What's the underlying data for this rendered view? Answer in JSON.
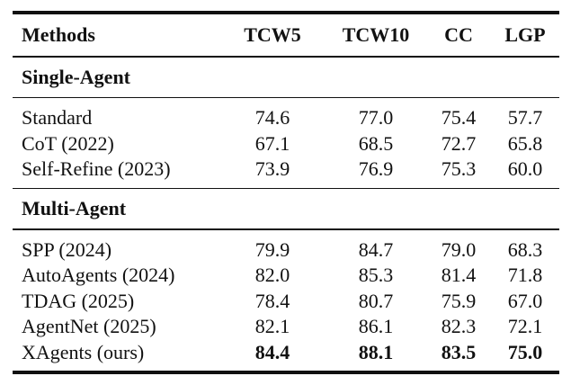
{
  "table": {
    "columns": [
      "Methods",
      "TCW5",
      "TCW10",
      "CC",
      "LGP"
    ],
    "groups": [
      {
        "title": "Single-Agent",
        "rows": [
          {
            "method": "Standard",
            "values": [
              "74.6",
              "77.0",
              "75.4",
              "57.7"
            ],
            "bold": false
          },
          {
            "method": "CoT (2022)",
            "values": [
              "67.1",
              "68.5",
              "72.7",
              "65.8"
            ],
            "bold": false
          },
          {
            "method": "Self-Refine (2023)",
            "values": [
              "73.9",
              "76.9",
              "75.3",
              "60.0"
            ],
            "bold": false
          }
        ]
      },
      {
        "title": "Multi-Agent",
        "rows": [
          {
            "method": "SPP (2024)",
            "values": [
              "79.9",
              "84.7",
              "79.0",
              "68.3"
            ],
            "bold": false
          },
          {
            "method": "AutoAgents (2024)",
            "values": [
              "82.0",
              "85.3",
              "81.4",
              "71.8"
            ],
            "bold": false
          },
          {
            "method": "TDAG (2025)",
            "values": [
              "78.4",
              "80.7",
              "75.9",
              "67.0"
            ],
            "bold": false
          },
          {
            "method": "AgentNet (2025)",
            "values": [
              "82.1",
              "86.1",
              "82.3",
              "72.1"
            ],
            "bold": false
          },
          {
            "method": "XAgents (ours)",
            "values": [
              "84.4",
              "88.1",
              "83.5",
              "75.0"
            ],
            "bold": true
          }
        ]
      }
    ]
  }
}
